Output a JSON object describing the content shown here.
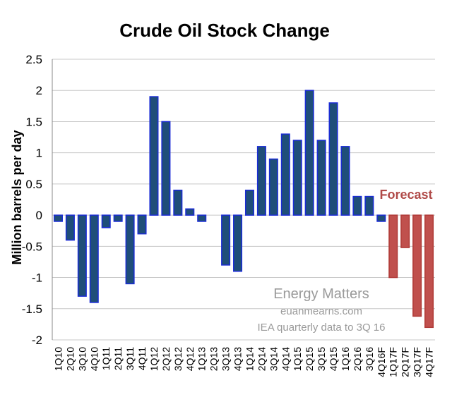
{
  "chart_data": {
    "type": "bar",
    "title": "Crude Oil Stock Change",
    "xlabel": "",
    "ylabel": "Million barrels per day",
    "ylim": [
      -2,
      2.5
    ],
    "yticks": [
      2.5,
      2,
      1.5,
      1,
      0.5,
      0,
      -0.5,
      -1,
      -1.5,
      -2
    ],
    "ytick_labels": [
      "2.5",
      "2",
      "1.5",
      "1",
      "0.5",
      "0",
      "-0.5",
      "-1",
      "-1.5",
      "-2"
    ],
    "grid": true,
    "categories": [
      "1Q10",
      "2Q10",
      "3Q10",
      "4Q10",
      "1Q11",
      "2Q11",
      "3Q11",
      "4Q11",
      "1Q12",
      "2Q12",
      "3Q12",
      "4Q12",
      "1Q13",
      "2Q13",
      "3Q13",
      "4Q13",
      "1Q14",
      "2Q14",
      "3Q14",
      "4Q14",
      "1Q15",
      "2Q15",
      "3Q15",
      "4Q15",
      "1Q16",
      "2Q16",
      "3Q16",
      "4Q16F",
      "1Q17F",
      "2Q17F",
      "3Q17F",
      "4Q17F"
    ],
    "values": [
      -0.1,
      -0.4,
      -1.3,
      -1.4,
      -0.2,
      -0.1,
      -1.1,
      -0.3,
      1.9,
      1.5,
      0.4,
      0.1,
      -0.1,
      0,
      -0.8,
      -0.9,
      0.4,
      1.1,
      0.9,
      1.3,
      1.2,
      2.0,
      1.2,
      1.8,
      1.1,
      0.3,
      0.3,
      -0.1,
      -1.0,
      -0.52,
      -1.62,
      -1.8
    ],
    "forecast_from_index": 28,
    "colors": {
      "actual_fill": "#1f4e79",
      "actual_stroke": "#1a2bd6",
      "forecast_fill": "#c0504d",
      "forecast_stroke": "#b03a37",
      "grid": "#c8c8c8",
      "axis": "#888888"
    },
    "annotations": {
      "forecast": "Forecast",
      "watermark_title": "Energy Matters",
      "watermark_site": "euanmearns.com",
      "watermark_source": "IEA quarterly data to 3Q 16"
    }
  }
}
